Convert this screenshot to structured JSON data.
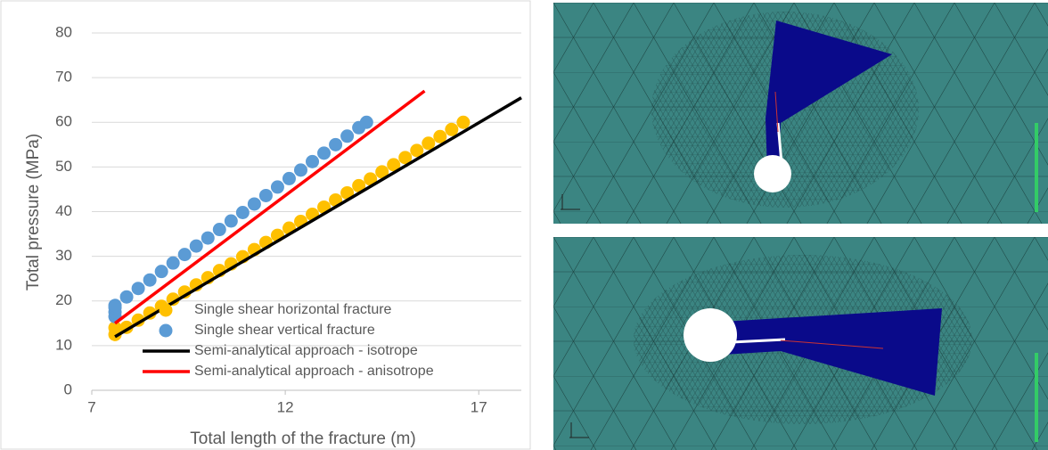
{
  "chart_data": {
    "type": "scatter",
    "xlabel": "Total length of the fracture (m)",
    "ylabel": "Total pressure (MPa)",
    "xlim": [
      7,
      18.1
    ],
    "ylim": [
      0,
      80
    ],
    "xticks": [
      7,
      12,
      17
    ],
    "yticks": [
      0,
      10,
      20,
      30,
      40,
      50,
      60,
      70,
      80
    ],
    "grid": true,
    "legend": "lower-right",
    "series": [
      {
        "name": "Single shear horizontal fracture",
        "type": "scatter",
        "color": "#ffc000",
        "x": [
          7.6,
          7.6,
          7.9,
          8.2,
          8.5,
          8.8,
          9.1,
          9.4,
          9.7,
          10.0,
          10.3,
          10.6,
          10.9,
          11.2,
          11.5,
          11.8,
          12.1,
          12.4,
          12.7,
          13.0,
          13.3,
          13.6,
          13.9,
          14.2,
          14.5,
          14.8,
          15.1,
          15.4,
          15.7,
          16.0,
          16.3,
          16.6
        ],
        "values": [
          12.5,
          14.0,
          14.1,
          15.7,
          17.3,
          18.8,
          20.4,
          22.0,
          23.6,
          25.2,
          26.8,
          28.3,
          29.9,
          31.5,
          33.1,
          34.7,
          36.3,
          37.8,
          39.4,
          41.0,
          42.6,
          44.2,
          45.8,
          47.3,
          48.9,
          50.5,
          52.1,
          53.7,
          55.3,
          56.8,
          58.4,
          60.0
        ]
      },
      {
        "name": "Single shear vertical fracture",
        "type": "scatter",
        "color": "#5b9bd5",
        "x": [
          7.6,
          7.6,
          7.6,
          7.6,
          7.9,
          8.2,
          8.5,
          8.8,
          9.1,
          9.4,
          9.7,
          10.0,
          10.3,
          10.6,
          10.9,
          11.2,
          11.5,
          11.8,
          12.1,
          12.4,
          12.7,
          13.0,
          13.3,
          13.6,
          13.9,
          14.1
        ],
        "values": [
          16.5,
          17.5,
          18.5,
          19.0,
          20.9,
          22.8,
          24.7,
          26.6,
          28.5,
          30.4,
          32.3,
          34.1,
          36.0,
          37.9,
          39.8,
          41.7,
          43.6,
          45.5,
          47.4,
          49.3,
          51.2,
          53.1,
          55.0,
          56.9,
          58.8,
          60.0
        ]
      },
      {
        "name": "Semi-analytical approach - isotrope",
        "type": "line",
        "color": "#000000",
        "x": [
          7.6,
          18.1
        ],
        "values": [
          12.0,
          65.5
        ]
      },
      {
        "name": "Semi-analytical approach - anisotrope",
        "type": "line",
        "color": "#ff0000",
        "x": [
          7.6,
          15.6
        ],
        "values": [
          15.0,
          67.0
        ]
      }
    ]
  }
}
